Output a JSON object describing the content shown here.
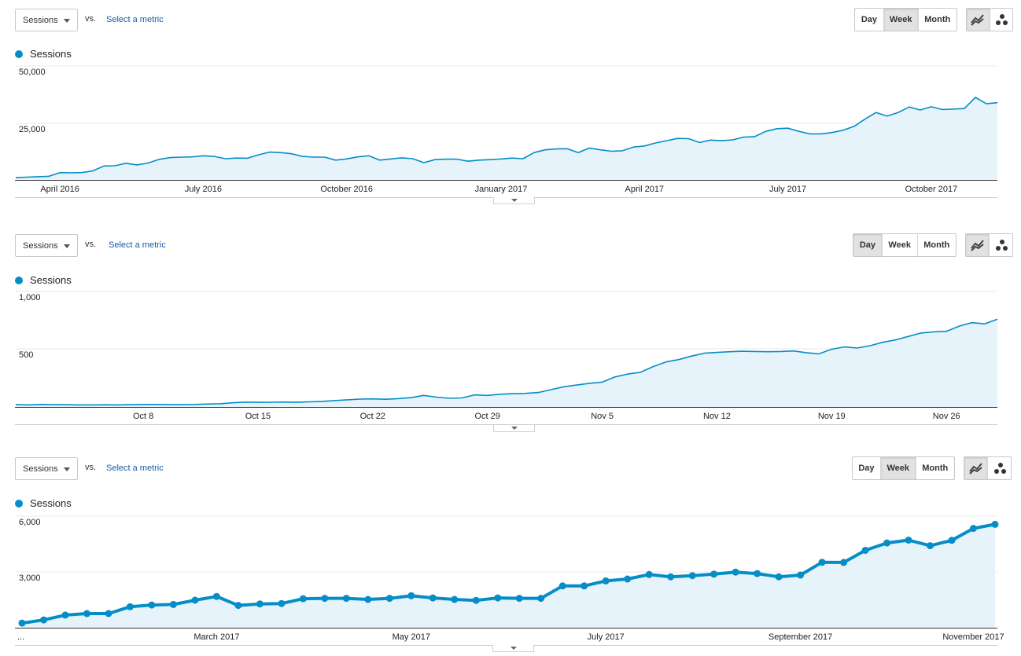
{
  "colors": {
    "series": "#058dc7",
    "area": "#e6f3fa",
    "grid": "#e8e8e8",
    "link": "#1a5aa8"
  },
  "icons": [
    "chevron-down-icon",
    "line-chart-icon",
    "motion-chart-icon",
    "legend-dot-icon"
  ],
  "panels": [
    {
      "metric_select": "Sessions",
      "vs_label": "vs.",
      "select_metric_label": "Select a metric",
      "granularity": {
        "day": "Day",
        "week": "Week",
        "month": "Month",
        "active": "week"
      },
      "legend_label": "Sessions"
    },
    {
      "metric_select": "Sessions",
      "vs_label": "vs.",
      "select_metric_label": "Select a metric",
      "granularity": {
        "day": "Day",
        "week": "Week",
        "month": "Month",
        "active": "day"
      },
      "legend_label": "Sessions"
    },
    {
      "metric_select": "Sessions",
      "vs_label": "vs.",
      "select_metric_label": "Select a metric",
      "granularity": {
        "day": "Day",
        "week": "Week",
        "month": "Month",
        "active": "week"
      },
      "legend_label": "Sessions"
    }
  ],
  "chart_data": [
    {
      "type": "area",
      "series": [
        {
          "name": "Sessions",
          "values": [
            1000,
            1200,
            1400,
            1600,
            3200,
            3100,
            3200,
            4000,
            6100,
            6200,
            7300,
            6600,
            7400,
            9000,
            9800,
            10000,
            10100,
            10600,
            10300,
            9300,
            9600,
            9500,
            11000,
            12200,
            12000,
            11500,
            10300,
            10000,
            10000,
            8700,
            9200,
            10100,
            10600,
            8700,
            9200,
            9700,
            9300,
            7600,
            8900,
            9100,
            9100,
            8200,
            8700,
            8900,
            9200,
            9600,
            9300,
            12000,
            13200,
            13600,
            13700,
            12000,
            14000,
            13200,
            12600,
            12800,
            14400,
            14900,
            16200,
            17200,
            18200,
            18100,
            16400,
            17500,
            17200,
            17600,
            18800,
            19000,
            21300,
            22500,
            22700,
            21300,
            20200,
            20200,
            20800,
            21800,
            23500,
            26700,
            29600,
            28000,
            29600,
            32000,
            30700,
            32100,
            30900,
            31100,
            31300,
            36200,
            33400,
            33900
          ]
        }
      ],
      "ylim": [
        0,
        50000
      ],
      "y_ticks": [
        "50,000",
        "25,000"
      ],
      "x_ticks": [
        {
          "label": "April 2016",
          "index": 4
        },
        {
          "label": "July 2016",
          "index": 17
        },
        {
          "label": "October 2016",
          "index": 30
        },
        {
          "label": "January 2017",
          "index": 44
        },
        {
          "label": "April 2017",
          "index": 57
        },
        {
          "label": "July 2017",
          "index": 70
        },
        {
          "label": "October 2017",
          "index": 83
        }
      ],
      "markers": false,
      "grid": true
    },
    {
      "type": "area",
      "series": [
        {
          "name": "Sessions",
          "values": [
            20,
            18,
            22,
            20,
            19,
            18,
            18,
            19,
            18,
            20,
            22,
            22,
            21,
            21,
            22,
            25,
            28,
            36,
            42,
            40,
            41,
            43,
            40,
            44,
            48,
            55,
            62,
            68,
            70,
            67,
            72,
            80,
            100,
            85,
            75,
            78,
            105,
            100,
            110,
            115,
            118,
            125,
            150,
            175,
            190,
            205,
            215,
            260,
            285,
            300,
            350,
            390,
            410,
            440,
            465,
            472,
            478,
            482,
            480,
            478,
            480,
            485,
            470,
            460,
            500,
            520,
            510,
            530,
            560,
            580,
            610,
            640,
            650,
            655,
            700,
            730,
            720,
            760
          ]
        }
      ],
      "ylim": [
        0,
        1000
      ],
      "y_ticks": [
        "1,000",
        "500"
      ],
      "x_ticks": [
        {
          "label": "Oct 8",
          "index": 10
        },
        {
          "label": "Oct 15",
          "index": 19
        },
        {
          "label": "Oct 22",
          "index": 28
        },
        {
          "label": "Oct 29",
          "index": 37
        },
        {
          "label": "Nov 5",
          "index": 46
        },
        {
          "label": "Nov 12",
          "index": 55
        },
        {
          "label": "Nov 19",
          "index": 64
        },
        {
          "label": "Nov 26",
          "index": 73
        }
      ],
      "markers": false,
      "grid": true
    },
    {
      "type": "line",
      "series": [
        {
          "name": "Sessions",
          "values": [
            250,
            420,
            680,
            760,
            760,
            1130,
            1220,
            1250,
            1480,
            1680,
            1200,
            1280,
            1300,
            1560,
            1580,
            1580,
            1520,
            1580,
            1720,
            1600,
            1520,
            1470,
            1600,
            1580,
            1580,
            2250,
            2250,
            2520,
            2620,
            2860,
            2740,
            2800,
            2880,
            2990,
            2910,
            2740,
            2830,
            3520,
            3510,
            4160,
            4560,
            4710,
            4410,
            4700,
            5340,
            5560
          ]
        }
      ],
      "ylim": [
        0,
        6000
      ],
      "y_ticks": [
        "6,000",
        "3,000"
      ],
      "x_ticks": [
        {
          "label": "...",
          "index": 0
        },
        {
          "label": "March 2017",
          "index": 9
        },
        {
          "label": "May 2017",
          "index": 18
        },
        {
          "label": "July 2017",
          "index": 27
        },
        {
          "label": "September 2017",
          "index": 36
        },
        {
          "label": "November 2017",
          "index": 44
        }
      ],
      "markers": true,
      "grid": true
    }
  ]
}
